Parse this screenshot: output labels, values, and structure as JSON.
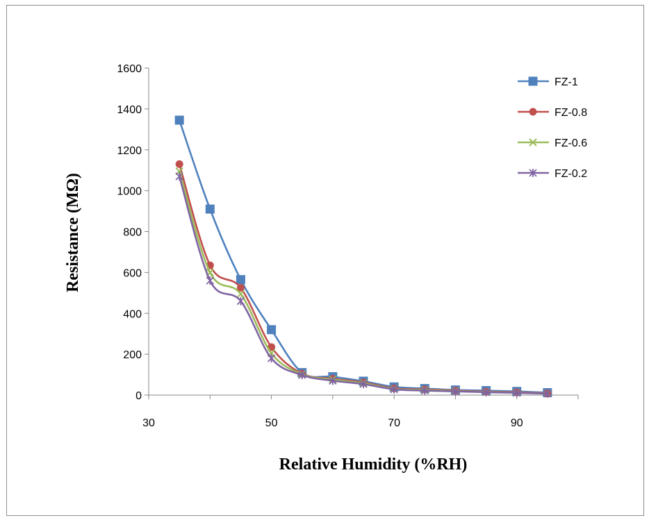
{
  "chart_data": {
    "type": "line",
    "title": "",
    "xlabel": "Relative Humidity (%RH)",
    "ylabel": "Resistance (MΩ)",
    "xlim": [
      30,
      100
    ],
    "ylim": [
      0,
      1600
    ],
    "xticks": [
      30,
      50,
      70,
      90
    ],
    "yticks": [
      0,
      200,
      400,
      600,
      800,
      1000,
      1200,
      1400,
      1600
    ],
    "grid": false,
    "legend_position": "top-right",
    "x": [
      35,
      40,
      45,
      50,
      55,
      60,
      65,
      70,
      75,
      80,
      85,
      90,
      95
    ],
    "series": [
      {
        "name": "FZ-1",
        "color": "#4f81bd",
        "marker": "square",
        "values": [
          1345,
          910,
          565,
          320,
          110,
          90,
          68,
          40,
          32,
          25,
          22,
          18,
          12
        ]
      },
      {
        "name": "FZ-0.8",
        "color": "#c0504d",
        "marker": "circle",
        "values": [
          1130,
          635,
          525,
          235,
          105,
          80,
          62,
          33,
          28,
          22,
          17,
          14,
          9
        ]
      },
      {
        "name": "FZ-0.6",
        "color": "#9bbb59",
        "marker": "x",
        "values": [
          1095,
          600,
          495,
          205,
          102,
          76,
          58,
          30,
          25,
          20,
          15,
          12,
          8
        ]
      },
      {
        "name": "FZ-0.2",
        "color": "#8064a2",
        "marker": "star",
        "values": [
          1070,
          560,
          460,
          180,
          98,
          70,
          54,
          28,
          22,
          18,
          14,
          11,
          7
        ]
      }
    ]
  }
}
